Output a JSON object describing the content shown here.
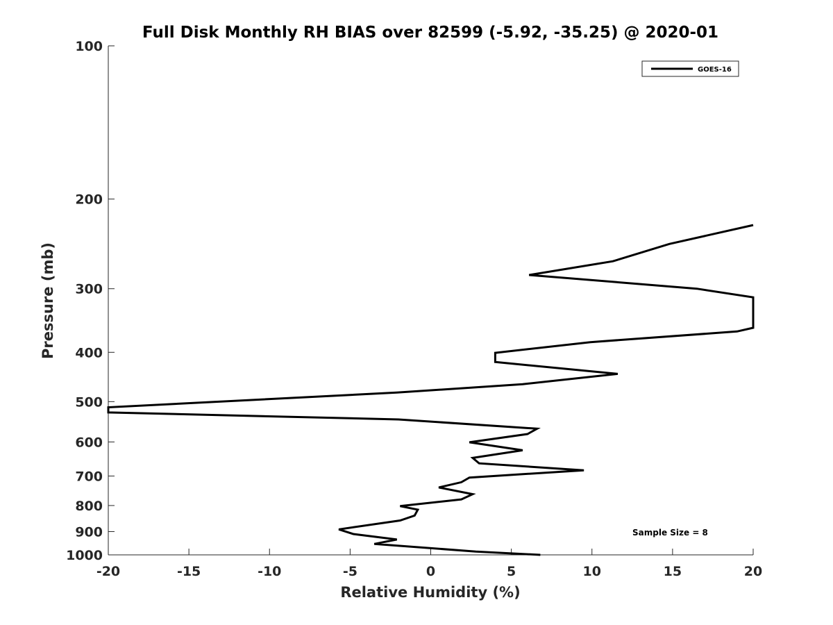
{
  "chart_data": {
    "type": "line",
    "title": "Full Disk Monthly RH BIAS over 82599 (-5.92, -35.25) @ 2020-01",
    "xlabel": "Relative Humidity (%)",
    "ylabel": "Pressure (mb)",
    "xlim": [
      -20,
      20
    ],
    "ylim": [
      100,
      1000
    ],
    "y_scale": "log",
    "y_reversed": true,
    "x_ticks": [
      "-20",
      "-15",
      "-10",
      "-5",
      "0",
      "5",
      "10",
      "15",
      "20"
    ],
    "y_ticks": [
      "100",
      "200",
      "300",
      "400",
      "500",
      "600",
      "700",
      "800",
      "900",
      "1000"
    ],
    "grid": false,
    "legend_position": "top-right",
    "annotation": "Sample Size = 8",
    "series": [
      {
        "name": "GOES-16",
        "color": "#000000",
        "points": [
          [
            20.0,
            225
          ],
          [
            14.8,
            245
          ],
          [
            11.3,
            265
          ],
          [
            6.1,
            282
          ],
          [
            16.5,
            300
          ],
          [
            20.0,
            312
          ],
          [
            20.0,
            358
          ],
          [
            19.0,
            364
          ],
          [
            9.9,
            382
          ],
          [
            4.0,
            401
          ],
          [
            4.0,
            418
          ],
          [
            11.6,
            441
          ],
          [
            5.7,
            462
          ],
          [
            -2.1,
            480
          ],
          [
            -20.0,
            513
          ],
          [
            -20.0,
            525
          ],
          [
            -2.0,
            542
          ],
          [
            6.6,
            565
          ],
          [
            6.0,
            579
          ],
          [
            2.4,
            601
          ],
          [
            5.7,
            623
          ],
          [
            2.6,
            645
          ],
          [
            3.0,
            661
          ],
          [
            9.5,
            682
          ],
          [
            2.4,
            705
          ],
          [
            1.9,
            720
          ],
          [
            0.5,
            737
          ],
          [
            2.6,
            760
          ],
          [
            1.9,
            778
          ],
          [
            -1.9,
            802
          ],
          [
            -0.8,
            815
          ],
          [
            -1.0,
            837
          ],
          [
            -1.9,
            856
          ],
          [
            -5.7,
            891
          ],
          [
            -4.8,
            910
          ],
          [
            -2.1,
            933
          ],
          [
            -3.5,
            952
          ],
          [
            2.8,
            985
          ],
          [
            6.8,
            1000
          ]
        ]
      }
    ]
  }
}
